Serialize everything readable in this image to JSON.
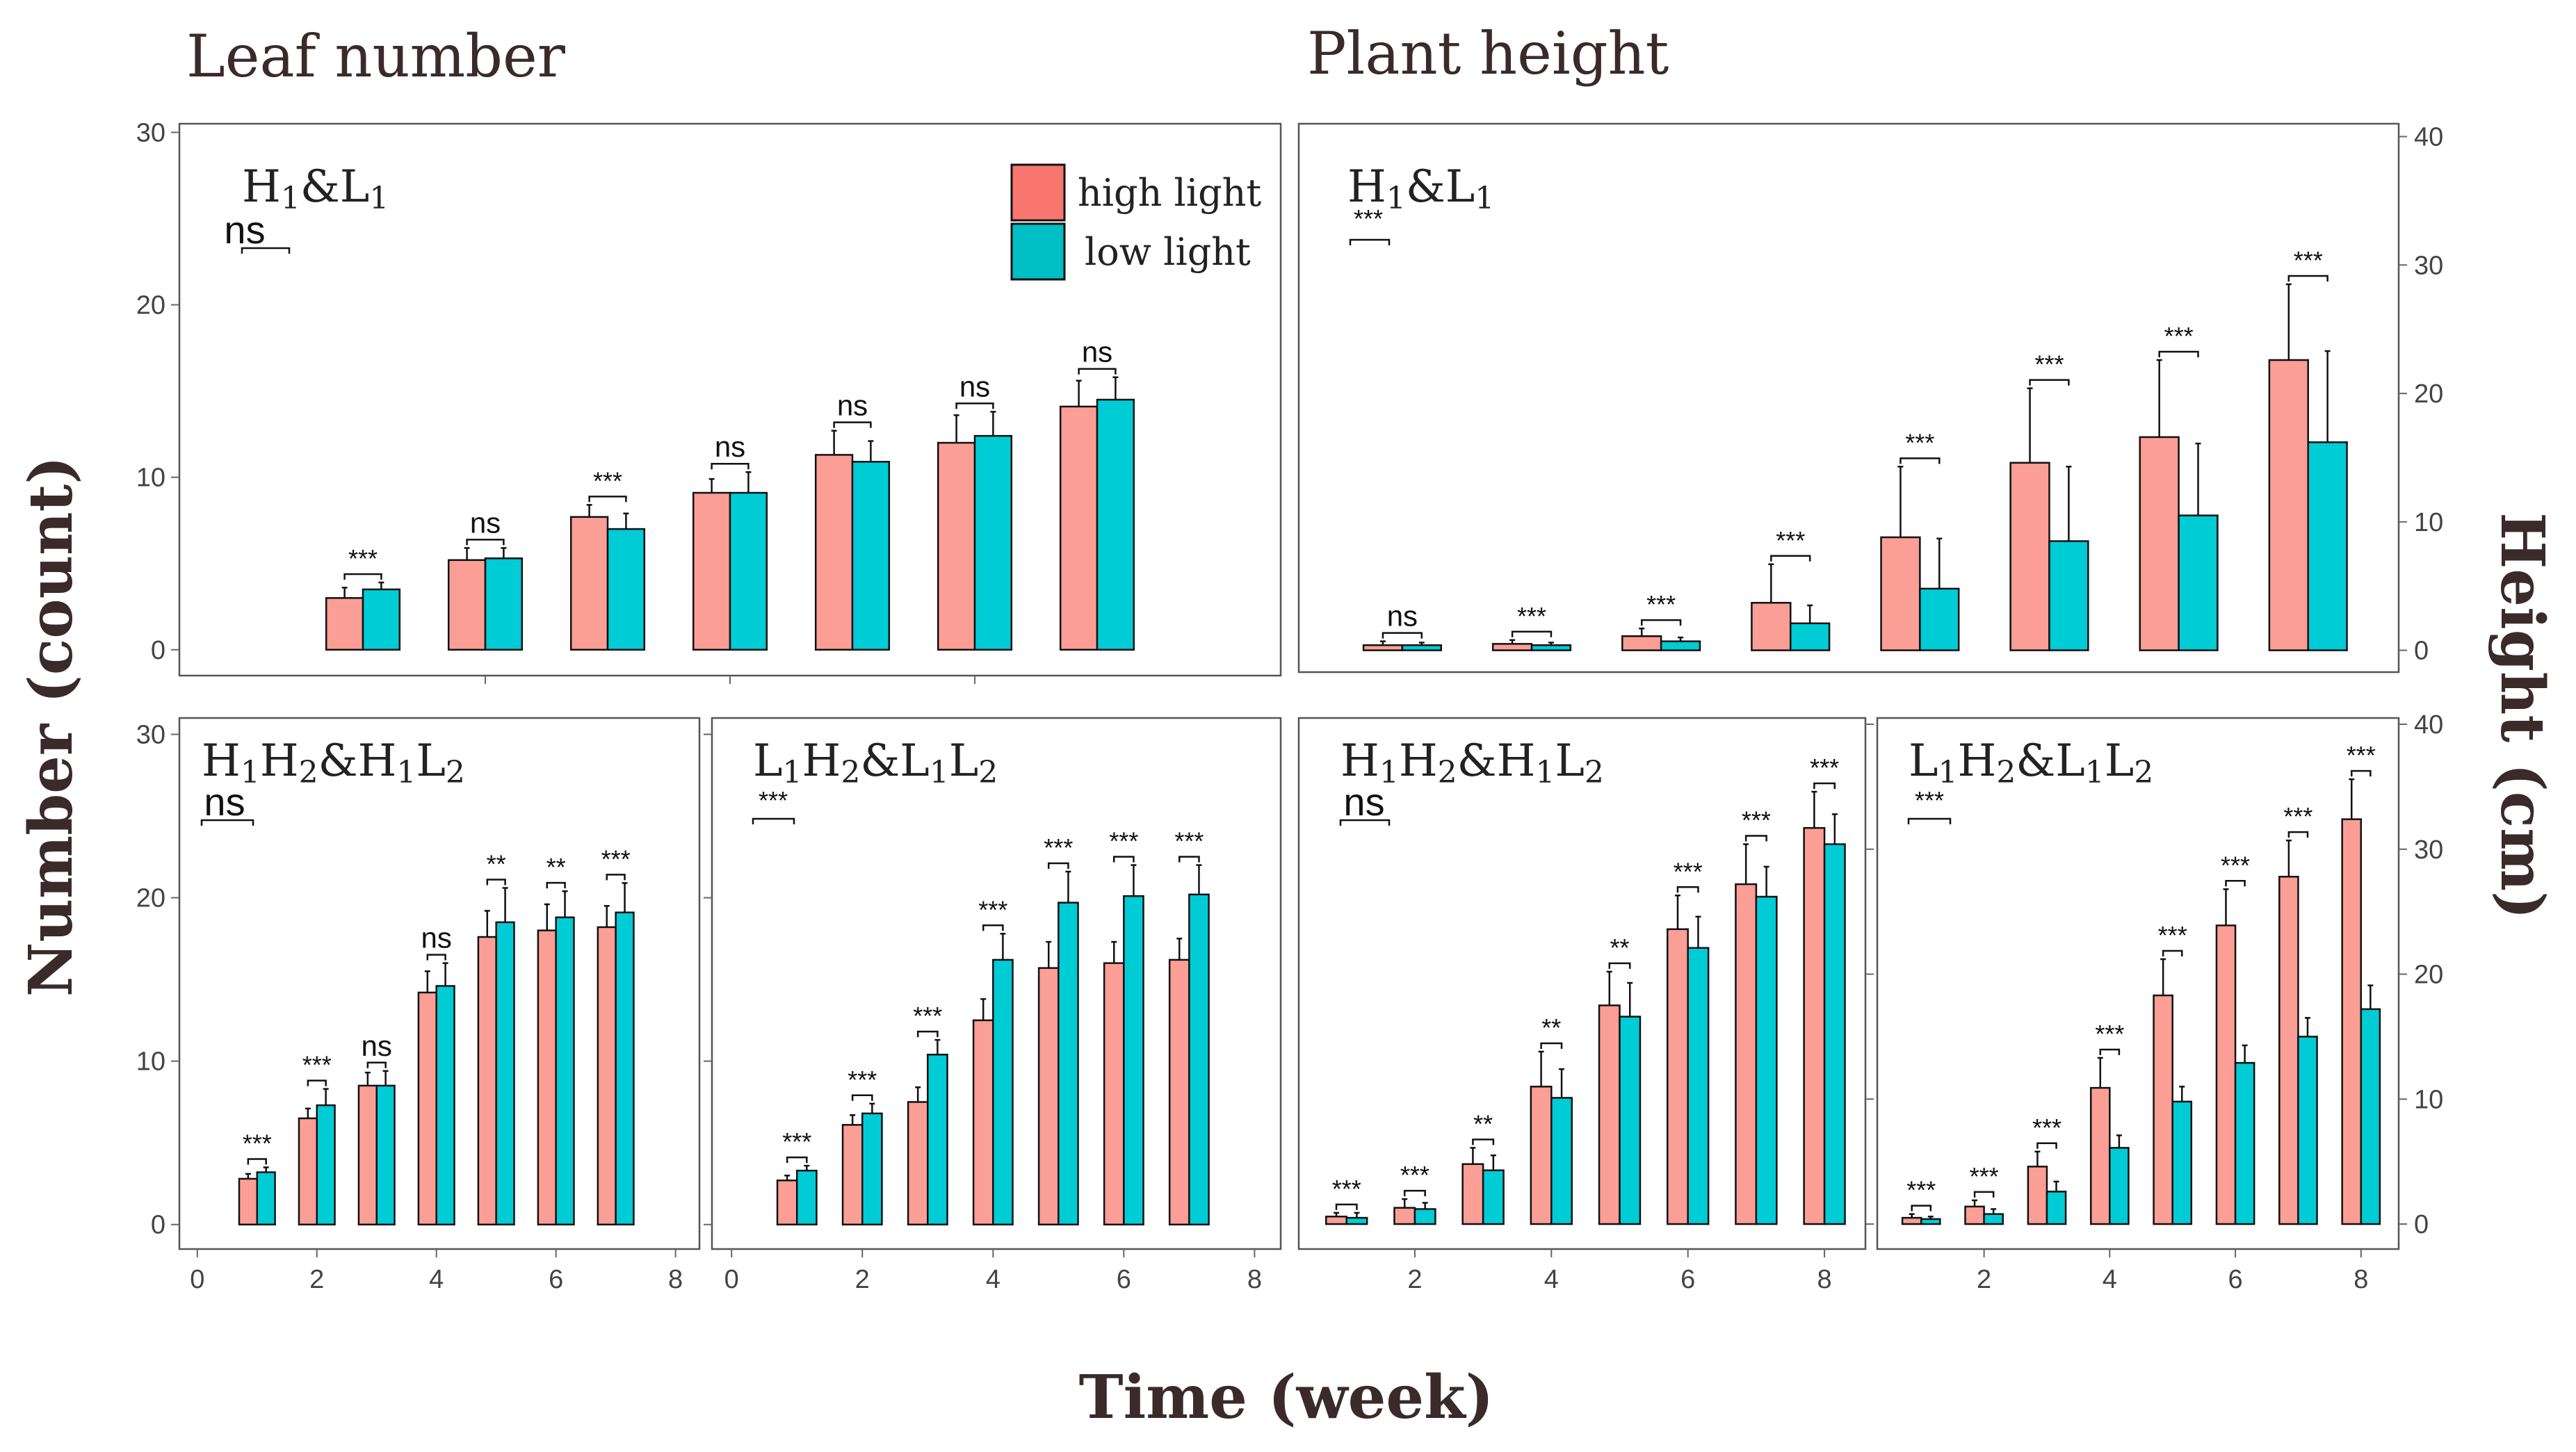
{
  "titles": {
    "leaf": "Leaf number",
    "plant": "Plant height",
    "x_axis": "Time (week)",
    "y_left": "Number (count)",
    "y_right": "Height (cm)"
  },
  "legend": {
    "items": [
      {
        "label": "high light",
        "color": "#F8766D"
      },
      {
        "label": "low light",
        "color": "#00BFC4"
      }
    ]
  },
  "colors": {
    "high_fill": "#FA9E96",
    "low_fill": "#00CCD6",
    "high_legend": "#F8766D",
    "low_legend": "#00BFC4"
  },
  "chart_data": [
    {
      "id": "leaf_h1l1",
      "type": "bar",
      "label": "H1&L1",
      "global_sig": "ns",
      "x": [
        1,
        2,
        3,
        4,
        5,
        6,
        7
      ],
      "series": [
        {
          "name": "high light",
          "values": [
            3.0,
            5.2,
            7.7,
            9.1,
            11.3,
            12.0,
            14.1
          ],
          "errors": [
            0.6,
            0.7,
            0.7,
            0.8,
            1.4,
            1.6,
            1.5
          ]
        },
        {
          "name": "low light",
          "values": [
            3.5,
            5.3,
            7.0,
            9.1,
            10.9,
            12.4,
            14.5
          ],
          "errors": [
            0.4,
            0.6,
            0.9,
            1.2,
            1.2,
            1.4,
            1.3
          ]
        }
      ],
      "sig": [
        "***",
        "ns",
        "***",
        "ns",
        "ns",
        "ns",
        "ns"
      ],
      "ylim": [
        -1.5,
        30.5
      ],
      "yticks": [
        0,
        10,
        20,
        30
      ],
      "xticks": [],
      "xlim": [
        -0.5,
        8.5
      ]
    },
    {
      "id": "height_h1l1",
      "type": "bar",
      "label": "H1&L1",
      "global_sig": "***",
      "x": [
        1,
        2,
        3,
        4,
        5,
        6,
        7,
        8
      ],
      "series": [
        {
          "name": "high light",
          "values": [
            0.4,
            0.5,
            1.1,
            3.7,
            8.8,
            14.6,
            16.6,
            22.6
          ],
          "errors": [
            0.3,
            0.3,
            0.6,
            3.0,
            5.5,
            5.8,
            6.0,
            5.9
          ]
        },
        {
          "name": "low light",
          "values": [
            0.4,
            0.4,
            0.7,
            2.1,
            4.8,
            8.5,
            10.5,
            16.2
          ],
          "errors": [
            0.2,
            0.2,
            0.3,
            1.4,
            3.9,
            5.8,
            5.6,
            7.1
          ]
        }
      ],
      "sig": [
        "ns",
        "***",
        "***",
        "***",
        "***",
        "***",
        "***",
        "***"
      ],
      "ylim": [
        -1.7,
        41
      ],
      "yticks": [
        0,
        10,
        20,
        30,
        40
      ],
      "xticks": [],
      "xlim": [
        0.2,
        8.7
      ]
    },
    {
      "id": "leaf_h1h2",
      "type": "bar",
      "label": "H1H2&H1L2",
      "global_sig": "ns",
      "x": [
        1,
        2,
        3,
        4,
        5,
        6,
        7
      ],
      "series": [
        {
          "name": "high light",
          "values": [
            2.8,
            6.5,
            8.5,
            14.2,
            17.6,
            18.0,
            18.2
          ],
          "errors": [
            0.3,
            0.6,
            0.8,
            1.3,
            1.6,
            1.6,
            1.3
          ]
        },
        {
          "name": "low light",
          "values": [
            3.2,
            7.3,
            8.5,
            14.6,
            18.5,
            18.8,
            19.1
          ],
          "errors": [
            0.3,
            1.0,
            0.9,
            1.4,
            2.1,
            1.6,
            1.8
          ]
        }
      ],
      "sig": [
        "***",
        "***",
        "ns",
        "ns",
        "**",
        "**",
        "***"
      ],
      "ylim": [
        -1.5,
        31
      ],
      "yticks": [
        0,
        10,
        20,
        30
      ],
      "xticks": [
        0,
        2,
        4,
        6,
        8
      ],
      "xlim": [
        -0.3,
        8.4
      ]
    },
    {
      "id": "leaf_l1h2",
      "type": "bar",
      "label": "L1H2&L1L2",
      "global_sig": "***",
      "x": [
        1,
        2,
        3,
        4,
        5,
        6,
        7
      ],
      "series": [
        {
          "name": "high light",
          "values": [
            2.7,
            6.1,
            7.5,
            12.5,
            15.7,
            16.0,
            16.2
          ],
          "errors": [
            0.3,
            0.6,
            0.9,
            1.3,
            1.6,
            1.3,
            1.3
          ]
        },
        {
          "name": "low light",
          "values": [
            3.3,
            6.8,
            10.4,
            16.2,
            19.7,
            20.1,
            20.2
          ],
          "errors": [
            0.3,
            0.6,
            0.9,
            1.6,
            1.9,
            1.9,
            1.8
          ]
        }
      ],
      "sig": [
        "***",
        "***",
        "***",
        "***",
        "***",
        "***",
        "***"
      ],
      "ylim": [
        -1.5,
        31
      ],
      "yticks": [],
      "xticks": [
        0,
        2,
        4,
        6,
        8
      ],
      "xlim": [
        -0.3,
        8.4
      ]
    },
    {
      "id": "height_h1h2",
      "type": "bar",
      "label": "H1H2&H1L2",
      "global_sig": "ns",
      "x": [
        1,
        2,
        3,
        4,
        5,
        6,
        7,
        8
      ],
      "series": [
        {
          "name": "high light",
          "values": [
            0.6,
            1.3,
            4.8,
            11.0,
            17.5,
            23.6,
            27.2,
            31.7
          ],
          "errors": [
            0.3,
            0.7,
            1.3,
            2.8,
            2.7,
            2.7,
            3.2,
            2.9
          ]
        },
        {
          "name": "low light",
          "values": [
            0.5,
            1.2,
            4.3,
            10.1,
            16.6,
            22.1,
            26.2,
            30.4
          ],
          "errors": [
            0.4,
            0.5,
            1.2,
            2.3,
            2.7,
            2.5,
            2.4,
            2.4
          ]
        }
      ],
      "sig": [
        "***",
        "***",
        "**",
        "**",
        "**",
        "***",
        "***",
        "***"
      ],
      "ylim": [
        -2,
        40.5
      ],
      "yticks": [],
      "xticks": [
        2,
        4,
        6,
        8
      ],
      "xlim": [
        0.3,
        8.6
      ]
    },
    {
      "id": "height_l1h2",
      "type": "bar",
      "label": "L1H2&L1L2",
      "global_sig": "***",
      "x": [
        1,
        2,
        3,
        4,
        5,
        6,
        7,
        8
      ],
      "series": [
        {
          "name": "high light",
          "values": [
            0.5,
            1.4,
            4.6,
            10.9,
            18.3,
            23.9,
            27.8,
            32.4
          ],
          "errors": [
            0.3,
            0.5,
            1.2,
            2.4,
            2.9,
            2.9,
            2.9,
            3.2
          ]
        },
        {
          "name": "low light",
          "values": [
            0.4,
            0.8,
            2.6,
            6.1,
            9.8,
            12.9,
            15.0,
            17.2
          ],
          "errors": [
            0.2,
            0.4,
            0.8,
            1.0,
            1.2,
            1.4,
            1.5,
            1.9
          ]
        }
      ],
      "sig": [
        "***",
        "***",
        "***",
        "***",
        "***",
        "***",
        "***",
        "***"
      ],
      "ylim": [
        -2,
        40.5
      ],
      "yticks": [
        0,
        10,
        20,
        30,
        40
      ],
      "xticks": [
        2,
        4,
        6,
        8
      ],
      "xlim": [
        0.3,
        8.6
      ]
    }
  ]
}
